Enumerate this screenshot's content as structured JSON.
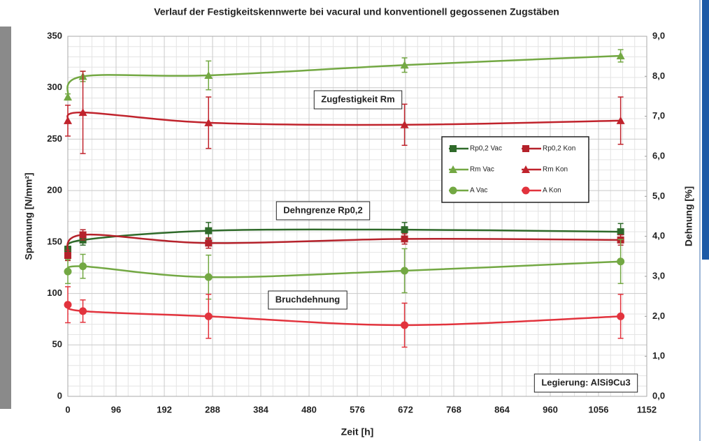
{
  "chart_data": {
    "type": "line",
    "title": "Verlauf der Festigkeitskennwerte bei vacural und konventionell gegossenen Zugstäben",
    "x_label": "Zeit [h]",
    "y_label": "Spannung [N/mm²]",
    "y2_label": "Dehnung [%]",
    "xlim": [
      0,
      1152
    ],
    "xticks": [
      0,
      96,
      192,
      288,
      384,
      480,
      576,
      672,
      768,
      864,
      960,
      1056,
      1152
    ],
    "ylim": [
      0,
      350
    ],
    "yticks": [
      0,
      50,
      100,
      150,
      200,
      250,
      300,
      350
    ],
    "y2lim": [
      0,
      9
    ],
    "y2ticks": [
      {
        "value": 0,
        "label": "0,0"
      },
      {
        "value": 1,
        "label": "1,0"
      },
      {
        "value": 2,
        "label": "2,0"
      },
      {
        "value": 3,
        "label": "3,0"
      },
      {
        "value": 4,
        "label": "4,0"
      },
      {
        "value": 5,
        "label": "5,0"
      },
      {
        "value": 6,
        "label": "6,0"
      },
      {
        "value": 7,
        "label": "7,0"
      },
      {
        "value": 8,
        "label": "8,0"
      },
      {
        "value": 9,
        "label": "9,0"
      }
    ],
    "grid": true,
    "minor_grid": true,
    "legend": "upper right",
    "x": [
      0,
      30,
      280,
      670,
      1100
    ],
    "series": [
      {
        "name": "Rp0,2 Vac",
        "color": "#2f6a2a",
        "marker": "square",
        "values": [
          143,
          152,
          161,
          162,
          160
        ],
        "errors": [
          3,
          5,
          8,
          7,
          8
        ]
      },
      {
        "name": "Rp0,2 Kon",
        "color": "#b5222b",
        "marker": "square",
        "values": [
          137,
          157,
          149,
          153,
          152
        ],
        "errors": [
          5,
          5,
          5,
          5,
          5
        ]
      },
      {
        "name": "Rm Vac",
        "color": "#73a843",
        "marker": "triangle",
        "values": [
          291,
          311,
          312,
          322,
          331
        ],
        "errors": [
          3,
          5,
          14,
          7,
          6
        ]
      },
      {
        "name": "Rm Kon",
        "color": "#c0232c",
        "marker": "triangle",
        "values": [
          268,
          276,
          266,
          264,
          268
        ],
        "errors": [
          15,
          40,
          25,
          20,
          23
        ]
      },
      {
        "name": "A Vac",
        "color": "#73a843",
        "marker": "circle",
        "axis": "y2",
        "values": [
          3.12,
          3.25,
          2.98,
          3.14,
          3.37
        ],
        "errors": [
          0.3,
          0.3,
          0.55,
          0.55,
          0.55
        ]
      },
      {
        "name": "A Kon",
        "color": "#e2333d",
        "marker": "circle",
        "axis": "y2",
        "values": [
          2.29,
          2.13,
          2.0,
          1.78,
          2.0
        ],
        "errors": [
          0.45,
          0.28,
          0.55,
          0.55,
          0.55
        ]
      }
    ],
    "annotations": [
      "Zugfestigkeit Rm",
      "Dehngrenze Rp0,2",
      "Bruchdehnung",
      "Legierung: AlSi9Cu3"
    ]
  }
}
